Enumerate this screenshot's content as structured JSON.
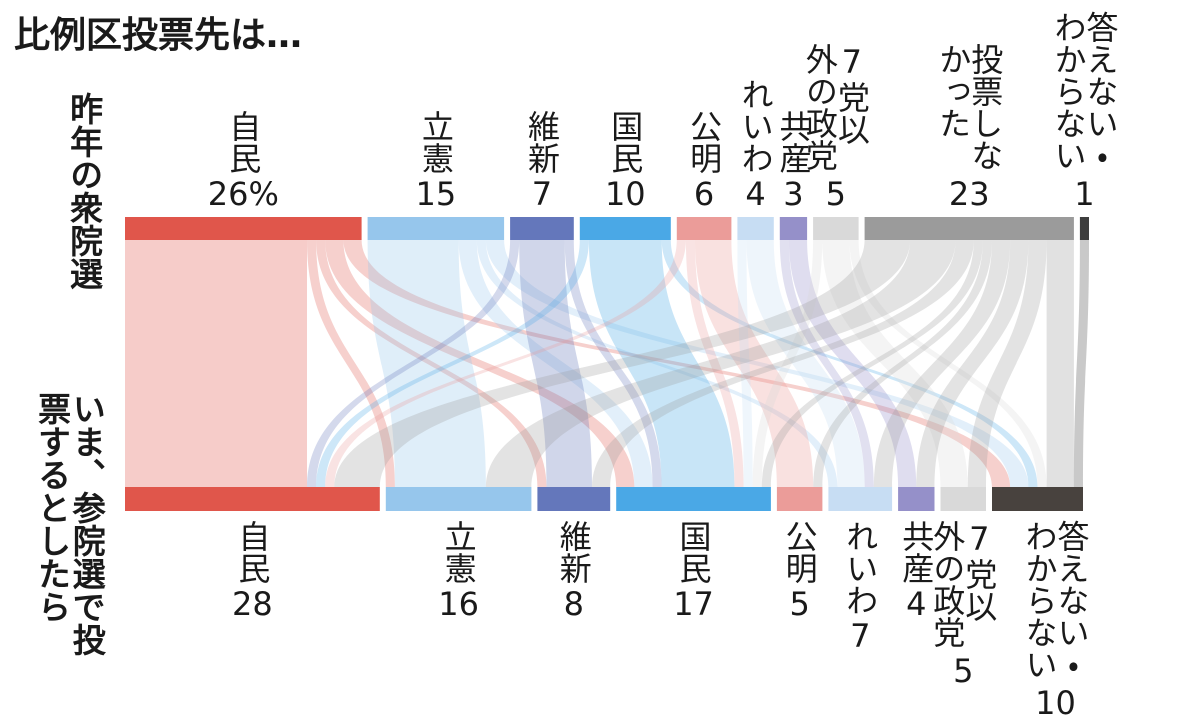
{
  "chart_data": {
    "type": "sankey",
    "title": "比例区投票先は…",
    "source_label": "昨年の衆院選",
    "target_label": "いま、参院選で投票するとしたら",
    "sources": {
      "names": [
        "自民",
        "立憲",
        "維新",
        "国民",
        "公明",
        "れいわ",
        "共産",
        "7党以外の政党",
        "投票しなかった",
        "答えない・わからない"
      ],
      "values": [
        26,
        15,
        7,
        10,
        6,
        4,
        3,
        5,
        23,
        1
      ],
      "value_labels": [
        "26%",
        "15",
        "7",
        "10",
        "6",
        "4",
        "3",
        "5",
        "23",
        "1"
      ],
      "colors": [
        "#e0564b",
        "#96c6ec",
        "#6477bb",
        "#4aa8e6",
        "#eb9c99",
        "#c7ddf3",
        "#9590c9",
        "#d9d9d9",
        "#9b9b9b",
        "#3e3e3e"
      ]
    },
    "targets": {
      "names": [
        "自民",
        "立憲",
        "維新",
        "国民",
        "公明",
        "れいわ",
        "共産",
        "7党以外の政党",
        "答えない・わからない"
      ],
      "values": [
        28,
        16,
        8,
        17,
        5,
        7,
        4,
        5,
        10
      ],
      "colors": [
        "#e0564b",
        "#96c6ec",
        "#6477bb",
        "#4aa8e6",
        "#eb9c99",
        "#c7ddf3",
        "#9590c9",
        "#d9d9d9",
        "#48423e"
      ]
    },
    "flows": [
      {
        "source": 0,
        "target": 0,
        "value": 20
      },
      {
        "source": 0,
        "target": 1,
        "value": 1
      },
      {
        "source": 0,
        "target": 2,
        "value": 1
      },
      {
        "source": 0,
        "target": 3,
        "value": 2
      },
      {
        "source": 0,
        "target": 8,
        "value": 2
      },
      {
        "source": 1,
        "target": 1,
        "value": 10
      },
      {
        "source": 1,
        "target": 3,
        "value": 2
      },
      {
        "source": 1,
        "target": 5,
        "value": 1
      },
      {
        "source": 1,
        "target": 8,
        "value": 2
      },
      {
        "source": 2,
        "target": 0,
        "value": 1
      },
      {
        "source": 2,
        "target": 2,
        "value": 5
      },
      {
        "source": 2,
        "target": 3,
        "value": 1
      },
      {
        "source": 3,
        "target": 0,
        "value": 1
      },
      {
        "source": 3,
        "target": 3,
        "value": 8
      },
      {
        "source": 3,
        "target": 8,
        "value": 1
      },
      {
        "source": 4,
        "target": 0,
        "value": 1
      },
      {
        "source": 4,
        "target": 3,
        "value": 1
      },
      {
        "source": 4,
        "target": 4,
        "value": 4
      },
      {
        "source": 5,
        "target": 3,
        "value": 1
      },
      {
        "source": 5,
        "target": 5,
        "value": 3
      },
      {
        "source": 6,
        "target": 5,
        "value": 1
      },
      {
        "source": 6,
        "target": 6,
        "value": 2
      },
      {
        "source": 7,
        "target": 3,
        "value": 1
      },
      {
        "source": 7,
        "target": 7,
        "value": 3
      },
      {
        "source": 7,
        "target": 8,
        "value": 1
      },
      {
        "source": 8,
        "target": 0,
        "value": 5
      },
      {
        "source": 8,
        "target": 1,
        "value": 5
      },
      {
        "source": 8,
        "target": 2,
        "value": 2
      },
      {
        "source": 8,
        "target": 3,
        "value": 1
      },
      {
        "source": 8,
        "target": 4,
        "value": 1
      },
      {
        "source": 8,
        "target": 5,
        "value": 2
      },
      {
        "source": 8,
        "target": 6,
        "value": 2
      },
      {
        "source": 8,
        "target": 7,
        "value": 2
      },
      {
        "source": 8,
        "target": 8,
        "value": 3
      },
      {
        "source": 9,
        "target": 8,
        "value": 1
      }
    ]
  }
}
